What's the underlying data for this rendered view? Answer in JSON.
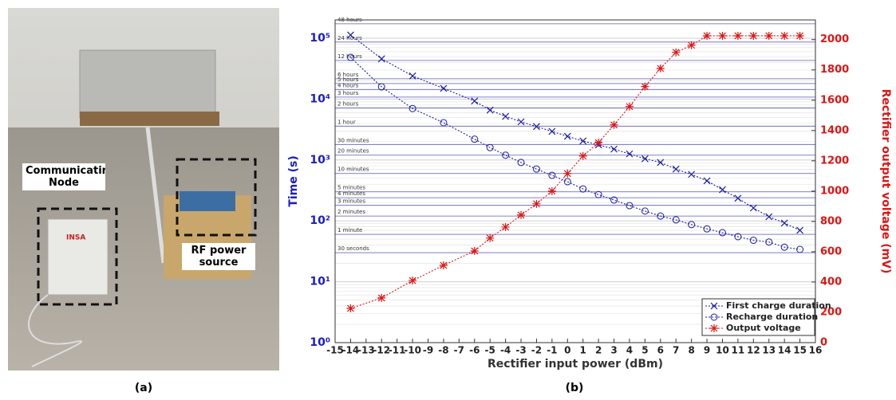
{
  "photo": {
    "node_label": "Communicating Node",
    "source_label": "RF power source",
    "logo": "INSA",
    "caption": "(a)"
  },
  "chart_data": {
    "type": "line",
    "caption": "(b)",
    "xlabel": "Rectifier input power (dBm)",
    "ylabel": "Time (s)",
    "y2label": "Rectifier output voltage (mV)",
    "ylog": true,
    "legend": "lower-right",
    "grid": true,
    "x": [
      -14,
      -12,
      -10,
      -8,
      -6,
      -5,
      -4,
      -3,
      -2,
      -1,
      0,
      1,
      2,
      3,
      4,
      5,
      6,
      7,
      8,
      9,
      10,
      11,
      12,
      13,
      14,
      15
    ],
    "xlim": [
      -15,
      16
    ],
    "xticks": [
      -15,
      -14,
      -13,
      -12,
      -11,
      -10,
      -9,
      -8,
      -7,
      -6,
      -5,
      -4,
      -3,
      -2,
      -1,
      0,
      1,
      2,
      3,
      4,
      5,
      6,
      7,
      8,
      9,
      10,
      11,
      12,
      13,
      14,
      15,
      16
    ],
    "ylim": [
      1,
      200000
    ],
    "yticks": [
      {
        "value": 1,
        "label": "10⁰"
      },
      {
        "value": 10,
        "label": "10¹"
      },
      {
        "value": 100,
        "label": "10²"
      },
      {
        "value": 1000,
        "label": "10³"
      },
      {
        "value": 10000,
        "label": "10⁴"
      },
      {
        "value": 100000,
        "label": "10⁵"
      }
    ],
    "y2lim": [
      0,
      2130
    ],
    "y2ticks": [
      0,
      200,
      400,
      600,
      800,
      1000,
      1200,
      1400,
      1600,
      1800,
      2000
    ],
    "reference_lines": [
      {
        "value": 172800,
        "label": "48 hours"
      },
      {
        "value": 86400,
        "label": "24 hours"
      },
      {
        "value": 43200,
        "label": "12 hours"
      },
      {
        "value": 21600,
        "label": "6 hours"
      },
      {
        "value": 18000,
        "label": "5 hours"
      },
      {
        "value": 14400,
        "label": "4 hours"
      },
      {
        "value": 10800,
        "label": "3 hours"
      },
      {
        "value": 7200,
        "label": "2 hours"
      },
      {
        "value": 3600,
        "label": "1 hour"
      },
      {
        "value": 1800,
        "label": "30 minutes"
      },
      {
        "value": 1200,
        "label": "20 minutes"
      },
      {
        "value": 600,
        "label": "10 minutes"
      },
      {
        "value": 300,
        "label": "5 minutes"
      },
      {
        "value": 240,
        "label": "4 minutes"
      },
      {
        "value": 180,
        "label": "3 minutes"
      },
      {
        "value": 120,
        "label": "2 minutes"
      },
      {
        "value": 60,
        "label": "1 minute"
      },
      {
        "value": 30,
        "label": "30 seconds"
      }
    ],
    "series": [
      {
        "name": "First charge duration",
        "color": "#1c1ca8",
        "marker": "x",
        "values": [
          113000,
          46000,
          24000,
          15000,
          9300,
          6600,
          5200,
          4240,
          3540,
          2950,
          2450,
          2050,
          1770,
          1510,
          1260,
          1050,
          910,
          710,
          580,
          455,
          325,
          235,
          163,
          117,
          92,
          70
        ]
      },
      {
        "name": "Recharge duration",
        "color": "#1c1ca8",
        "marker": "o",
        "values": [
          48500,
          15900,
          7000,
          4100,
          2200,
          1600,
          1200,
          910,
          710,
          560,
          440,
          335,
          270,
          220,
          178,
          145,
          120,
          104,
          87,
          74,
          64,
          55,
          48,
          45,
          37,
          34
        ]
      },
      {
        "name": "Output voltage",
        "color": "#e01414",
        "marker": "*",
        "axis": "y2",
        "values": [
          226,
          295,
          410,
          510,
          605,
          690,
          763,
          842,
          916,
          1000,
          1116,
          1232,
          1320,
          1437,
          1558,
          1690,
          1810,
          1916,
          1963,
          2025,
          2025,
          2025,
          2025,
          2025,
          2025,
          2025
        ]
      }
    ]
  }
}
